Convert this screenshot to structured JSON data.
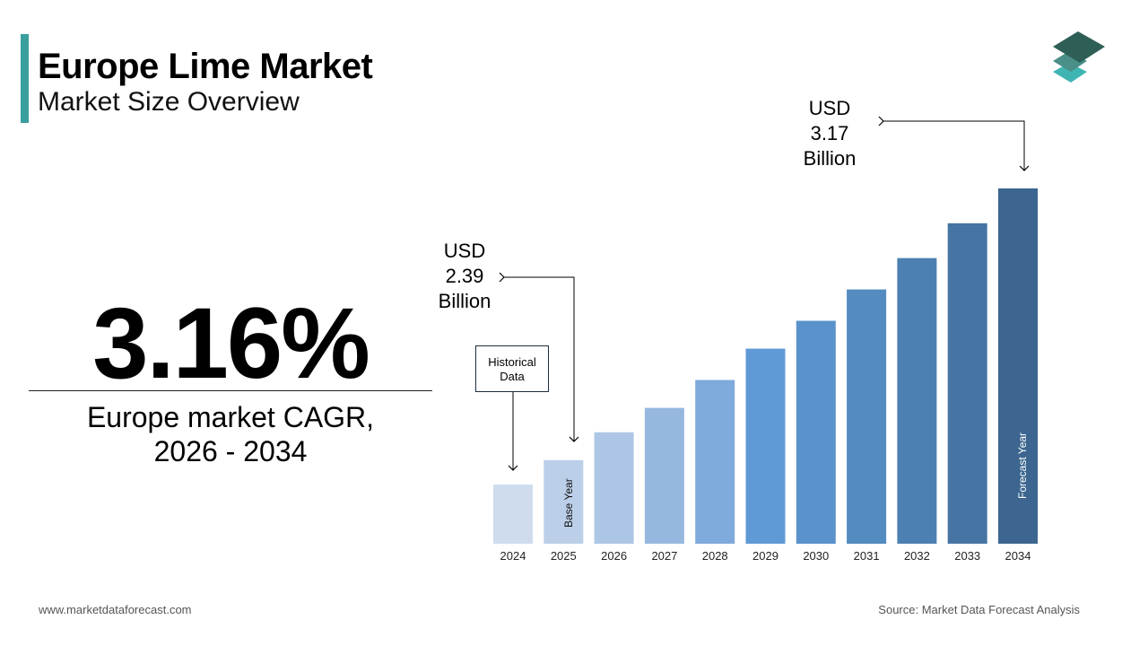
{
  "header": {
    "title": "Europe Lime Market",
    "subtitle": "Market Size Overview"
  },
  "kpi": {
    "value": "3.16%",
    "label_line1": "Europe market CAGR,",
    "label_line2": "2026 - 2034"
  },
  "annotations": {
    "base": {
      "line1": "USD",
      "line2": "2.39",
      "line3": "Billion"
    },
    "forecast": {
      "line1": "USD",
      "line2": "3.17",
      "line3": "Billion"
    },
    "historical": {
      "line1": "Historical",
      "line2": "Data"
    },
    "base_year": "Base Year",
    "forecast_year": "Forecast Year"
  },
  "footer": {
    "site": "www.marketdataforecast.com",
    "source": "Source: Market Data Forecast Analysis"
  },
  "chart_data": {
    "type": "bar",
    "categories": [
      "2024",
      "2025",
      "2026",
      "2027",
      "2028",
      "2029",
      "2030",
      "2031",
      "2032",
      "2033",
      "2034"
    ],
    "values": [
      2.32,
      2.39,
      2.47,
      2.54,
      2.62,
      2.71,
      2.79,
      2.88,
      2.97,
      3.07,
      3.17
    ],
    "colors": [
      "#cfdcee",
      "#bccfe8",
      "#aec6e5",
      "#97b8de",
      "#7eaadc",
      "#5f9ad6",
      "#5a93cc",
      "#548bc0",
      "#4d80b2",
      "#4674a3",
      "#3c6690"
    ],
    "unit": "USD Billion",
    "grid": false
  }
}
